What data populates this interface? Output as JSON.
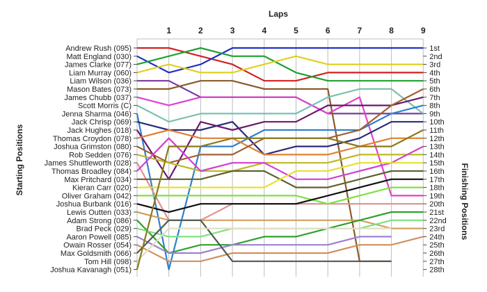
{
  "chart_data": {
    "type": "line",
    "title": "Laps",
    "xlabel": "Laps",
    "ylabel_left": "Starting Positions",
    "ylabel_right": "Finishing Positions",
    "x": [
      0,
      1,
      2,
      3,
      4,
      5,
      6,
      7,
      8,
      9
    ],
    "x_tick_labels": [
      "1",
      "2",
      "3",
      "4",
      "5",
      "6",
      "7",
      "8",
      "9"
    ],
    "ylim": [
      1,
      28
    ],
    "y_reversed": true,
    "grid": "vertical",
    "finishing_labels": [
      "1st",
      "2nd",
      "3rd",
      "4th",
      "5th",
      "6th",
      "7th",
      "8th",
      "9th",
      "10th",
      "11th",
      "12th",
      "13th",
      "14th",
      "15th",
      "16th",
      "17th",
      "18th",
      "19th",
      "20th",
      "21st",
      "22nd",
      "23rd",
      "24th",
      "25th",
      "26th",
      "27th",
      "28th"
    ],
    "series": [
      {
        "name": "Andrew Rush (095)",
        "color": "#d42020",
        "values": [
          1,
          1,
          2,
          3,
          5,
          5,
          4,
          4,
          4,
          4
        ]
      },
      {
        "name": "Matt England (030)",
        "color": "#2030c8",
        "values": [
          2,
          4,
          3,
          1,
          1,
          1,
          1,
          1,
          1,
          1
        ]
      },
      {
        "name": "James Clarke (077)",
        "color": "#20a030",
        "values": [
          3,
          2,
          1,
          2,
          2,
          4,
          5,
          5,
          5,
          5
        ]
      },
      {
        "name": "Liam Murray (060)",
        "color": "#e0d020",
        "values": [
          4,
          3,
          4,
          4,
          3,
          2,
          3,
          3,
          3,
          3
        ]
      },
      {
        "name": "Liam Wilson (036)",
        "color": "#7a3a9a",
        "values": [
          5,
          5,
          7,
          7,
          7,
          7,
          9,
          9,
          9,
          9
        ]
      },
      {
        "name": "Mason Bates (073)",
        "color": "#8a5a2a",
        "values": [
          6,
          6,
          5,
          5,
          6,
          6,
          6,
          27,
          27,
          null
        ]
      },
      {
        "name": "James Chubb (037)",
        "color": "#e040d0",
        "values": [
          7,
          8,
          7,
          7,
          7,
          7,
          9,
          7,
          19,
          19
        ]
      },
      {
        "name": "Scott Morris (C)",
        "color": "#7ac0b0",
        "values": [
          8,
          10,
          9,
          9,
          9,
          9,
          7,
          6,
          6,
          9
        ]
      },
      {
        "name": "Jenna Sharma (046)",
        "color": "#3080d0",
        "values": [
          9,
          28,
          13,
          13,
          11,
          11,
          11,
          11,
          9,
          8
        ]
      },
      {
        "name": "Jack Chrisp (069)",
        "color": "#2a2a7a",
        "values": [
          10,
          11,
          11,
          10,
          14,
          13,
          13,
          12,
          10,
          10
        ]
      },
      {
        "name": "Jack Hughes (018)",
        "color": "#6a1a6a",
        "values": [
          11,
          17,
          10,
          11,
          10,
          10,
          8,
          8,
          8,
          7
        ]
      },
      {
        "name": "Thomas Croydon (078)",
        "color": "#e08030",
        "values": [
          12,
          11,
          12,
          12,
          14,
          14,
          14,
          13,
          12,
          12
        ]
      },
      {
        "name": "Joshua Grimston (080)",
        "color": "#a06030",
        "values": [
          13,
          15,
          14,
          14,
          12,
          12,
          12,
          11,
          8,
          6
        ]
      },
      {
        "name": "Rob Sedden (076)",
        "color": "#c0b820",
        "values": [
          14,
          15,
          16,
          16,
          15,
          15,
          15,
          14,
          14,
          14
        ]
      },
      {
        "name": "James Shuttleworth (028)",
        "color": "#e09090",
        "values": [
          15,
          22,
          22,
          20,
          20,
          20,
          20,
          20,
          20,
          20
        ]
      },
      {
        "name": "Thomas Broadley (084)",
        "color": "#d040d0",
        "values": [
          16,
          12,
          16,
          15,
          15,
          17,
          17,
          16,
          15,
          13
        ]
      },
      {
        "name": "Max Pritchard (034)",
        "color": "#606030",
        "values": [
          17,
          17,
          17,
          16,
          16,
          18,
          18,
          17,
          16,
          16
        ]
      },
      {
        "name": "Kieran Carr (020)",
        "color": "#e8e030",
        "values": [
          18,
          18,
          18,
          18,
          18,
          16,
          16,
          15,
          15,
          15
        ]
      },
      {
        "name": "Oliver Graham (042)",
        "color": "#80e040",
        "values": [
          19,
          19,
          19,
          19,
          19,
          19,
          20,
          19,
          18,
          18
        ]
      },
      {
        "name": "Joshua Burbank (016)",
        "color": "#101010",
        "values": [
          20,
          21,
          20,
          20,
          20,
          20,
          19,
          18,
          17,
          17
        ]
      },
      {
        "name": "Lewis Outten (033)",
        "color": "#d0a060",
        "values": [
          21,
          22,
          22,
          22,
          22,
          22,
          22,
          22,
          23,
          23
        ]
      },
      {
        "name": "Adam Strong (086)",
        "color": "#30a030",
        "values": [
          22,
          26,
          25,
          25,
          24,
          24,
          23,
          22,
          21,
          21
        ]
      },
      {
        "name": "Brad Peck (029)",
        "color": "#80e080",
        "values": [
          23,
          24,
          24,
          23,
          23,
          23,
          23,
          23,
          22,
          22
        ]
      },
      {
        "name": "Aaron Powell (085)",
        "color": "#a080d0",
        "values": [
          24,
          26,
          26,
          25,
          25,
          25,
          25,
          24,
          24,
          null
        ]
      },
      {
        "name": "Owain Rosser (054)",
        "color": "#d09060",
        "values": [
          25,
          27,
          27,
          26,
          26,
          26,
          26,
          25,
          25,
          24
        ]
      },
      {
        "name": "Max Goldsmith (066)",
        "color": "#505a50",
        "values": [
          26,
          22,
          22,
          27,
          27,
          27,
          27,
          27,
          27,
          null
        ]
      },
      {
        "name": "Tom Hill (098)",
        "color": "#e0e0c0",
        "values": [
          27,
          23,
          23,
          23,
          23,
          23,
          23,
          23,
          23,
          null
        ]
      },
      {
        "name": "Joshua Kavanagh (051)",
        "color": "#8a7a1a",
        "values": [
          28,
          13,
          13,
          12,
          12,
          12,
          12,
          13,
          13,
          11
        ]
      }
    ]
  }
}
